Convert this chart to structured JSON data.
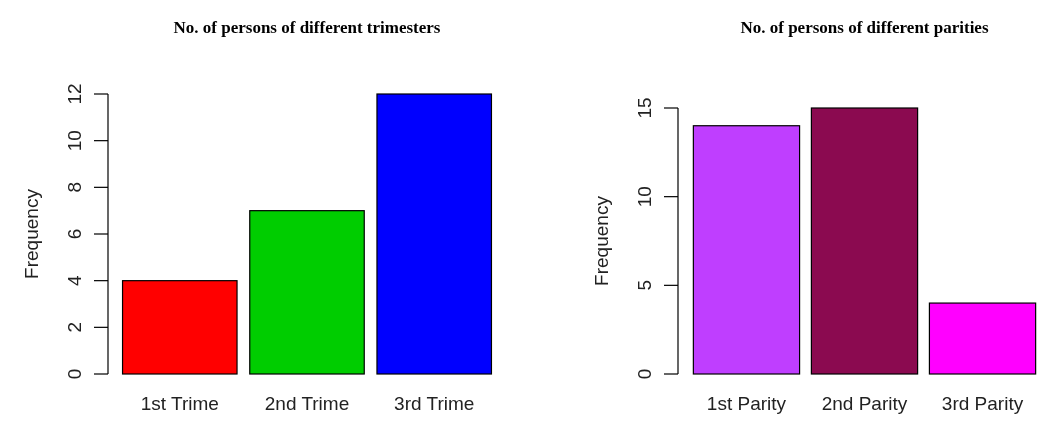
{
  "chart_data": [
    {
      "type": "bar",
      "title": "No. of persons of different trimesters",
      "ylabel": "Frequency",
      "categories": [
        "1st Trime",
        "2nd Trime",
        "3rd Trime"
      ],
      "values": [
        4,
        7,
        12
      ],
      "colors": [
        "#ff0000",
        "#00cd00",
        "#0000ff"
      ],
      "ylim": [
        0,
        12
      ],
      "yticks": [
        0,
        2,
        4,
        6,
        8,
        10,
        12
      ]
    },
    {
      "type": "bar",
      "title": "No. of persons of different parities",
      "ylabel": "Frequency",
      "categories": [
        "1st Parity",
        "2nd Parity",
        "3rd Parity"
      ],
      "values": [
        14,
        15,
        4
      ],
      "colors": [
        "#bf3eff",
        "#8b0a50",
        "#ff00ff"
      ],
      "ylim": [
        0,
        15
      ],
      "yticks": [
        0,
        5,
        10,
        15
      ]
    }
  ]
}
